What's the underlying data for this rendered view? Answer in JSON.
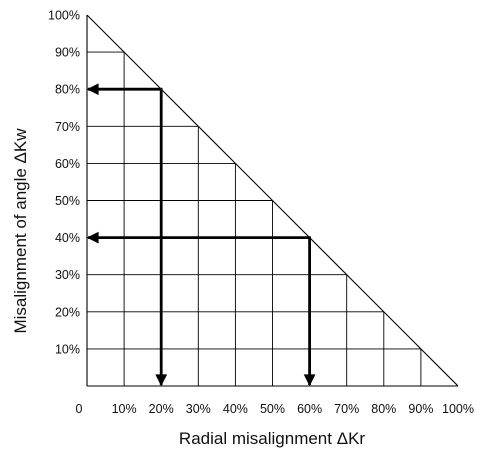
{
  "chart_data": {
    "type": "line",
    "title": "",
    "xlabel": "Radial misalignment ΔKr",
    "ylabel": "Misalignment of angle ΔKw",
    "xlim": [
      0,
      100
    ],
    "ylim": [
      0,
      100
    ],
    "x_tick_labels": [
      "0",
      "10%",
      "20%",
      "30%",
      "40%",
      "50%",
      "60%",
      "70%",
      "80%",
      "90%",
      "100%"
    ],
    "y_tick_labels": [
      "10%",
      "20%",
      "30%",
      "40%",
      "50%",
      "60%",
      "70%",
      "80%",
      "90%",
      "100%"
    ],
    "grid": "on, below boundary line x + y = 100",
    "boundary": {
      "x": [
        0,
        100
      ],
      "y": [
        100,
        0
      ]
    },
    "example_readings": [
      {
        "radial_misalignment": 20,
        "angle_misalignment": 80
      },
      {
        "radial_misalignment": 60,
        "angle_misalignment": 40
      }
    ],
    "colors": {
      "lines": "#000000",
      "grid": "#000000",
      "background": "#ffffff"
    }
  }
}
